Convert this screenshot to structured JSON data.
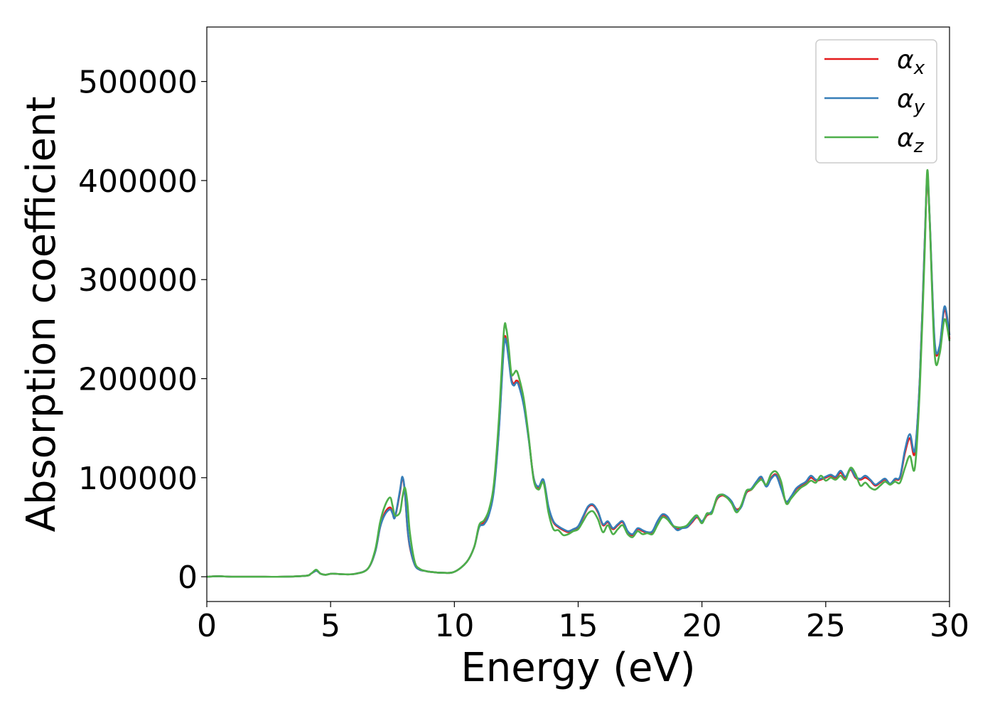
{
  "chart_data": {
    "type": "line",
    "xlabel": "Energy (eV)",
    "ylabel": "Absorption coefficient",
    "xlim": [
      0,
      30
    ],
    "ylim": [
      -25000,
      555000
    ],
    "xticks": [
      0,
      5,
      10,
      15,
      20,
      25,
      30
    ],
    "xtick_labels": [
      "0",
      "5",
      "10",
      "15",
      "20",
      "25",
      "30"
    ],
    "yticks": [
      0,
      100000,
      200000,
      300000,
      400000,
      500000
    ],
    "ytick_labels": [
      "0",
      "100000",
      "200000",
      "300000",
      "400000",
      "500000"
    ],
    "grid": false,
    "legend_position": "top-right",
    "legend": [
      {
        "symbol": "α",
        "sub": "x",
        "color": "#e41a1c"
      },
      {
        "symbol": "α",
        "sub": "y",
        "color": "#377eb8"
      },
      {
        "symbol": "α",
        "sub": "z",
        "color": "#4daf4a"
      }
    ],
    "series": [
      {
        "name": "α_x",
        "color": "#e41a1c",
        "x": [
          0,
          0.5,
          1,
          2,
          3,
          4,
          4.2,
          4.4,
          4.5,
          4.6,
          4.8,
          5,
          5.2,
          5.5,
          6,
          6.5,
          6.8,
          7,
          7.2,
          7.4,
          7.5,
          7.6,
          7.8,
          7.9,
          8,
          8.1,
          8.2,
          8.4,
          8.6,
          8.8,
          9,
          9.5,
          10,
          10.5,
          10.8,
          11,
          11.2,
          11.4,
          11.6,
          11.8,
          12,
          12.1,
          12.2,
          12.3,
          12.4,
          12.5,
          12.6,
          12.8,
          13,
          13.2,
          13.4,
          13.6,
          13.8,
          14,
          14.2,
          14.4,
          14.6,
          14.8,
          15,
          15.2,
          15.4,
          15.6,
          15.8,
          16,
          16.2,
          16.4,
          16.6,
          16.8,
          17,
          17.2,
          17.4,
          17.6,
          17.8,
          18,
          18.2,
          18.4,
          18.6,
          18.8,
          19,
          19.2,
          19.4,
          19.6,
          19.8,
          20,
          20.2,
          20.4,
          20.6,
          20.8,
          21,
          21.2,
          21.4,
          21.6,
          21.8,
          22,
          22.2,
          22.4,
          22.6,
          22.8,
          23,
          23.2,
          23.4,
          23.6,
          23.8,
          24,
          24.2,
          24.4,
          24.6,
          24.8,
          25,
          25.2,
          25.4,
          25.6,
          25.8,
          26,
          26.2,
          26.4,
          26.6,
          26.8,
          27,
          27.2,
          27.4,
          27.6,
          27.8,
          28,
          28.2,
          28.4,
          28.6,
          28.8,
          29,
          29.1,
          29.2,
          29.4,
          29.6,
          29.8,
          30
        ],
        "y": [
          0,
          500,
          0,
          0,
          0,
          1000,
          3000,
          6000,
          5000,
          3000,
          2000,
          3000,
          3000,
          2500,
          3000,
          8000,
          25000,
          50000,
          65000,
          70000,
          65000,
          60000,
          85000,
          100000,
          85000,
          50000,
          30000,
          12000,
          7000,
          6000,
          5000,
          4000,
          5000,
          15000,
          30000,
          50000,
          55000,
          65000,
          90000,
          150000,
          235000,
          238000,
          220000,
          200000,
          195000,
          198000,
          195000,
          175000,
          140000,
          100000,
          90000,
          97000,
          70000,
          55000,
          50000,
          47000,
          45000,
          47000,
          50000,
          60000,
          70000,
          72000,
          65000,
          52000,
          55000,
          48000,
          52000,
          55000,
          45000,
          42000,
          48000,
          46000,
          44000,
          45000,
          55000,
          62000,
          60000,
          52000,
          48000,
          50000,
          50000,
          55000,
          60000,
          55000,
          62000,
          65000,
          78000,
          82000,
          80000,
          75000,
          68000,
          72000,
          85000,
          88000,
          95000,
          100000,
          92000,
          100000,
          103000,
          90000,
          75000,
          80000,
          88000,
          92000,
          95000,
          100000,
          97000,
          98000,
          100000,
          102000,
          100000,
          105000,
          100000,
          108000,
          100000,
          98000,
          100000,
          97000,
          92000,
          95000,
          98000,
          93000,
          98000,
          100000,
          125000,
          140000,
          125000,
          200000,
          340000,
          400000,
          360000,
          235000,
          232000,
          270000,
          240000
        ]
      },
      {
        "name": "α_y",
        "color": "#377eb8",
        "x": [
          0,
          0.5,
          1,
          2,
          3,
          4,
          4.2,
          4.4,
          4.5,
          4.6,
          4.8,
          5,
          5.2,
          5.5,
          6,
          6.5,
          6.8,
          7,
          7.2,
          7.4,
          7.5,
          7.6,
          7.8,
          7.9,
          8,
          8.1,
          8.2,
          8.4,
          8.6,
          8.8,
          9,
          9.5,
          10,
          10.5,
          10.8,
          11,
          11.2,
          11.4,
          11.6,
          11.8,
          12,
          12.1,
          12.2,
          12.3,
          12.4,
          12.5,
          12.6,
          12.8,
          13,
          13.2,
          13.4,
          13.6,
          13.8,
          14,
          14.2,
          14.4,
          14.6,
          14.8,
          15,
          15.2,
          15.4,
          15.6,
          15.8,
          16,
          16.2,
          16.4,
          16.6,
          16.8,
          17,
          17.2,
          17.4,
          17.6,
          17.8,
          18,
          18.2,
          18.4,
          18.6,
          18.8,
          19,
          19.2,
          19.4,
          19.6,
          19.8,
          20,
          20.2,
          20.4,
          20.6,
          20.8,
          21,
          21.2,
          21.4,
          21.6,
          21.8,
          22,
          22.2,
          22.4,
          22.6,
          22.8,
          23,
          23.2,
          23.4,
          23.6,
          23.8,
          24,
          24.2,
          24.4,
          24.6,
          24.8,
          25,
          25.2,
          25.4,
          25.6,
          25.8,
          26,
          26.2,
          26.4,
          26.6,
          26.8,
          27,
          27.2,
          27.4,
          27.6,
          27.8,
          28,
          28.2,
          28.4,
          28.6,
          28.8,
          29,
          29.1,
          29.2,
          29.4,
          29.6,
          29.8,
          30
        ],
        "y": [
          0,
          500,
          0,
          0,
          0,
          1000,
          3000,
          6000,
          5000,
          3000,
          2000,
          3000,
          3000,
          2500,
          3000,
          8000,
          25000,
          50000,
          63000,
          68000,
          64000,
          60000,
          87000,
          101000,
          86000,
          51000,
          31000,
          12000,
          7000,
          6000,
          5000,
          4000,
          5000,
          15000,
          30000,
          50000,
          53000,
          63000,
          88000,
          148000,
          232000,
          236000,
          218000,
          198000,
          193000,
          196000,
          193000,
          173000,
          139000,
          100000,
          91000,
          98000,
          71000,
          56000,
          51000,
          48000,
          46000,
          48000,
          51000,
          61000,
          71000,
          73000,
          66000,
          53000,
          56000,
          49000,
          53000,
          56000,
          46000,
          43000,
          49000,
          47000,
          45000,
          46000,
          56000,
          63000,
          61000,
          53000,
          47000,
          49000,
          50000,
          56000,
          61000,
          56000,
          63000,
          66000,
          79000,
          83000,
          81000,
          76000,
          67000,
          71000,
          86000,
          89000,
          96000,
          101000,
          91000,
          99000,
          102000,
          89000,
          76000,
          81000,
          89000,
          93000,
          96000,
          102000,
          98000,
          99000,
          101000,
          103000,
          101000,
          107000,
          101000,
          109000,
          101000,
          99000,
          102000,
          98000,
          93000,
          96000,
          99000,
          94000,
          99000,
          101000,
          128000,
          144000,
          128000,
          200000,
          340000,
          405000,
          362000,
          238000,
          233000,
          273000,
          244000
        ]
      },
      {
        "name": "α_z",
        "color": "#4daf4a",
        "x": [
          0,
          0.5,
          1,
          2,
          3,
          4,
          4.2,
          4.4,
          4.5,
          4.6,
          4.8,
          5,
          5.2,
          5.5,
          6,
          6.5,
          6.8,
          7,
          7.2,
          7.4,
          7.5,
          7.6,
          7.8,
          7.9,
          8,
          8.1,
          8.2,
          8.4,
          8.6,
          8.8,
          9,
          9.5,
          10,
          10.5,
          10.8,
          11,
          11.2,
          11.4,
          11.6,
          11.8,
          12,
          12.1,
          12.2,
          12.3,
          12.4,
          12.5,
          12.6,
          12.8,
          13,
          13.2,
          13.4,
          13.6,
          13.8,
          14,
          14.2,
          14.4,
          14.6,
          14.8,
          15,
          15.2,
          15.4,
          15.6,
          15.8,
          16,
          16.2,
          16.4,
          16.6,
          16.8,
          17,
          17.2,
          17.4,
          17.6,
          17.8,
          18,
          18.2,
          18.4,
          18.6,
          18.8,
          19,
          19.2,
          19.4,
          19.6,
          19.8,
          20,
          20.2,
          20.4,
          20.6,
          20.8,
          21,
          21.2,
          21.4,
          21.6,
          21.8,
          22,
          22.2,
          22.4,
          22.6,
          22.8,
          23,
          23.2,
          23.4,
          23.6,
          23.8,
          24,
          24.2,
          24.4,
          24.6,
          24.8,
          25,
          25.2,
          25.4,
          25.6,
          25.8,
          26,
          26.2,
          26.4,
          26.6,
          26.8,
          27,
          27.2,
          27.4,
          27.6,
          27.8,
          28,
          28.2,
          28.4,
          28.6,
          28.8,
          29,
          29.1,
          29.2,
          29.4,
          29.6,
          29.8,
          30
        ],
        "y": [
          0,
          500,
          0,
          0,
          0,
          1000,
          3000,
          7000,
          5500,
          3000,
          2000,
          3000,
          3000,
          2500,
          3000,
          8000,
          27000,
          55000,
          72000,
          80000,
          72000,
          62000,
          65000,
          80000,
          90000,
          75000,
          45000,
          15000,
          8000,
          6000,
          5000,
          4000,
          5000,
          15000,
          30000,
          52000,
          57000,
          68000,
          95000,
          160000,
          248000,
          250000,
          230000,
          205000,
          205000,
          208000,
          202000,
          180000,
          142000,
          98000,
          88000,
          95000,
          65000,
          48000,
          47000,
          42000,
          43000,
          46000,
          48000,
          56000,
          64000,
          66000,
          58000,
          45000,
          52000,
          43000,
          48000,
          52000,
          43000,
          40000,
          46000,
          43000,
          44000,
          43000,
          52000,
          60000,
          58000,
          52000,
          50000,
          50000,
          52000,
          58000,
          62000,
          54000,
          64000,
          64000,
          80000,
          83000,
          80000,
          74000,
          65000,
          73000,
          87000,
          88000,
          94000,
          98000,
          93000,
          104000,
          106000,
          96000,
          74000,
          79000,
          85000,
          90000,
          93000,
          97000,
          95000,
          102000,
          97000,
          100000,
          98000,
          102000,
          98000,
          110000,
          104000,
          92000,
          95000,
          90000,
          88000,
          92000,
          96000,
          93000,
          96000,
          95000,
          110000,
          122000,
          110000,
          190000,
          330000,
          410000,
          360000,
          225000,
          225000,
          260000,
          238000
        ]
      }
    ]
  }
}
